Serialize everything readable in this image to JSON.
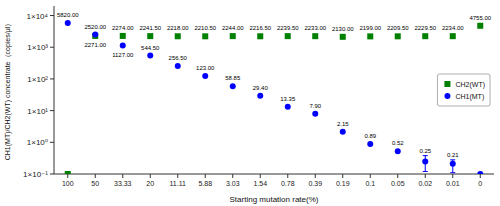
{
  "chart_data": {
    "type": "scatter",
    "xlabel": "Starting mutation rate(%)",
    "ylabel": "CH1(MT)/CH2(WT) concentrate（copies/μl）",
    "categories": [
      "100",
      "50",
      "33.33",
      "20",
      "11.11",
      "5.88",
      "3.03",
      "1.54",
      "0.78",
      "0.39",
      "0.19",
      "0.1",
      "0.05",
      "0.02",
      "0.01",
      "0"
    ],
    "series": [
      {
        "name": "CH2(WT)",
        "color": "#008000",
        "marker": "square",
        "values": [
          0.1,
          2271.0,
          2274.0,
          2241.5,
          2218.0,
          2210.5,
          2244.0,
          2216.5,
          2239.5,
          2233.0,
          2130.0,
          2199.0,
          2209.5,
          2229.5,
          2234.0,
          4755.0
        ],
        "value_labels": [
          null,
          "2271.00",
          "2274.00",
          "2241.50",
          "2218.00",
          "2210.50",
          "2244.00",
          "2216.50",
          "2239.50",
          "2233.00",
          "2130.00",
          "2199.00",
          "2209.50",
          "2229.50",
          "2234.00",
          "4755.00"
        ]
      },
      {
        "name": "CH1(MT)",
        "color": "#0000FF",
        "marker": "circle",
        "values": [
          5820.0,
          2520.0,
          1127.0,
          544.5,
          256.5,
          123.0,
          58.85,
          29.4,
          13.35,
          7.9,
          2.15,
          0.89,
          0.52,
          0.25,
          0.21,
          0.1
        ],
        "value_labels": [
          "5820.00",
          "2520.00",
          "1127.00",
          "544.50",
          "256.50",
          "123.00",
          "58.85",
          "29.40",
          "13.35",
          "7.90",
          "2.15",
          "0.89",
          "0.52",
          "0.25",
          "0.21",
          null
        ],
        "error_lower": [
          0,
          0,
          0,
          0,
          0,
          0,
          0,
          0,
          0,
          0,
          0,
          0,
          0,
          0.13,
          0.1,
          0
        ],
        "error_upper": [
          0,
          0,
          0,
          0,
          0,
          0,
          0,
          0,
          0,
          0,
          0,
          0,
          0,
          0.13,
          0.07,
          0
        ]
      }
    ],
    "ylim": [
      0.1,
      20000
    ],
    "yticks": [
      {
        "value": 0.1,
        "label": "1×10⁻¹"
      },
      {
        "value": 1,
        "label": "1×10⁰"
      },
      {
        "value": 10,
        "label": "1×10¹"
      },
      {
        "value": 100,
        "label": "1×10²"
      },
      {
        "value": 1000,
        "label": "1×10³"
      },
      {
        "value": 10000,
        "label": "1×10⁴"
      }
    ],
    "log": "y",
    "grid": false,
    "legend": "center right",
    "data_labels": true
  }
}
